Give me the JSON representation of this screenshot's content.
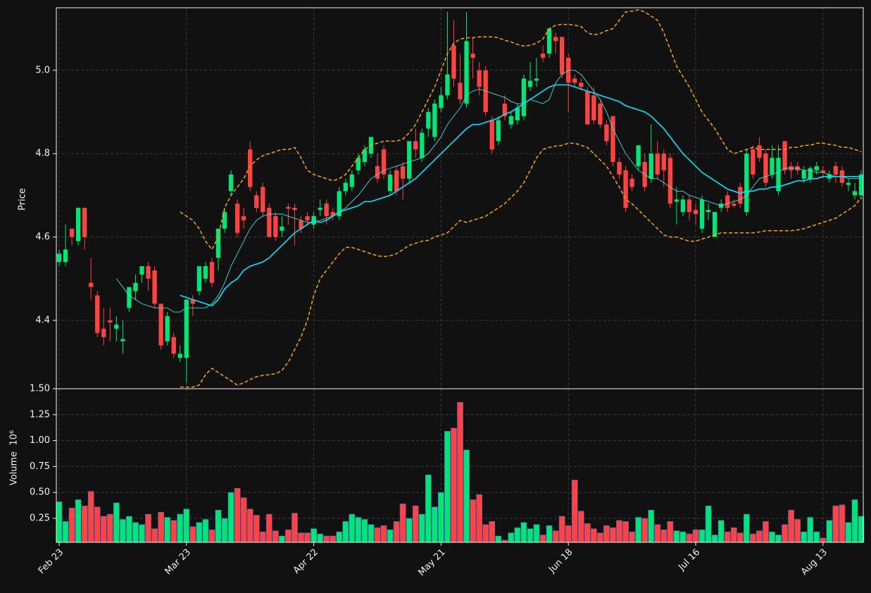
{
  "chart_data": {
    "type": "candlestick",
    "ylabel": "Price",
    "volume_ylabel": "Volume  10⁶",
    "up_color": "#00e676",
    "down_color": "#ff4242",
    "grid": true,
    "ylim": [
      4.236,
      5.15
    ],
    "yticks": [
      4.4,
      4.6,
      4.8,
      {
        "value": 5.0,
        "label": "5.0"
      }
    ],
    "volume_ylim": [
      0.019,
      1.5
    ],
    "volume_yticks": [
      0.25,
      {
        "value": 0.5,
        "label": "0.50"
      },
      0.75,
      {
        "value": 1.0,
        "label": "1.00"
      },
      1.25,
      {
        "value": 1.5,
        "label": "1.50"
      }
    ],
    "categories": [
      "Feb 23",
      null,
      null,
      null,
      null,
      null,
      null,
      null,
      null,
      null,
      null,
      null,
      null,
      null,
      null,
      null,
      null,
      null,
      null,
      null,
      "Mar 23",
      null,
      null,
      null,
      null,
      null,
      null,
      null,
      null,
      null,
      null,
      null,
      null,
      null,
      null,
      null,
      null,
      null,
      null,
      null,
      "Apr 22",
      null,
      null,
      null,
      null,
      null,
      null,
      null,
      null,
      null,
      null,
      null,
      null,
      null,
      null,
      null,
      null,
      null,
      null,
      null,
      "May 21",
      null,
      null,
      null,
      null,
      null,
      null,
      null,
      null,
      null,
      null,
      null,
      null,
      null,
      null,
      null,
      null,
      null,
      null,
      null,
      "Jun 18",
      null,
      null,
      null,
      null,
      null,
      null,
      null,
      null,
      null,
      null,
      null,
      null,
      null,
      null,
      null,
      null,
      null,
      null,
      null,
      "Jul 16",
      null,
      null,
      null,
      null,
      null,
      null,
      null,
      null,
      null,
      null,
      null,
      null,
      null,
      null,
      null,
      null,
      null,
      null,
      null,
      "Aug 13",
      null,
      null,
      null,
      null,
      null,
      null
    ],
    "open": [
      4.54,
      4.54,
      4.62,
      4.59,
      4.67,
      4.49,
      4.46,
      4.38,
      4.4,
      4.38,
      4.35,
      4.43,
      4.47,
      4.51,
      4.53,
      4.52,
      4.44,
      4.35,
      4.36,
      4.31,
      4.31,
      4.45,
      4.47,
      4.5,
      4.54,
      4.55,
      4.62,
      4.71,
      4.68,
      4.65,
      4.81,
      4.7,
      4.72,
      4.67,
      4.65,
      4.615,
      4.672,
      4.67,
      4.64,
      4.65,
      4.63,
      4.665,
      4.68,
      4.66,
      4.65,
      4.71,
      4.72,
      4.76,
      4.78,
      4.8,
      4.77,
      4.81,
      4.71,
      4.76,
      4.77,
      4.74,
      4.83,
      4.79,
      4.86,
      4.84,
      4.91,
      4.94,
      5.06,
      4.97,
      4.92,
      5.04,
      5.0,
      5.0,
      4.88,
      4.83,
      4.92,
      4.87,
      4.88,
      4.89,
      4.96,
      4.975,
      5.04,
      5.04,
      5.08,
      5.08,
      5.03,
      4.98,
      4.97,
      4.95,
      4.94,
      4.92,
      4.87,
      4.89,
      4.78,
      4.76,
      4.74,
      4.77,
      4.78,
      4.74,
      4.8,
      4.8,
      4.79,
      4.685,
      4.66,
      4.69,
      4.665,
      4.62,
      4.66,
      4.6,
      4.67,
      4.7,
      4.68,
      4.72,
      4.66,
      4.81,
      4.82,
      4.8,
      4.75,
      4.71,
      4.83,
      4.77,
      4.77,
      4.74,
      4.74,
      4.76,
      4.76,
      4.74,
      4.77,
      4.76,
      4.725,
      4.7,
      4.7
    ],
    "high": [
      4.57,
      4.63,
      4.62,
      4.67,
      4.67,
      4.55,
      4.47,
      4.43,
      4.43,
      4.41,
      4.4,
      4.48,
      4.51,
      4.53,
      4.54,
      4.53,
      4.44,
      4.42,
      4.37,
      4.34,
      4.45,
      4.46,
      4.53,
      4.54,
      4.55,
      4.62,
      4.67,
      4.76,
      4.69,
      4.67,
      4.83,
      4.71,
      4.73,
      4.68,
      4.66,
      4.65,
      4.68,
      4.68,
      4.65,
      4.66,
      4.66,
      4.69,
      4.69,
      4.67,
      4.72,
      4.74,
      4.76,
      4.8,
      4.82,
      4.84,
      4.8,
      4.82,
      4.76,
      4.77,
      4.78,
      4.83,
      4.86,
      4.86,
      4.91,
      4.93,
      4.96,
      5.14,
      5.12,
      5.04,
      5.14,
      5.08,
      5.02,
      5.01,
      4.89,
      4.89,
      4.94,
      4.9,
      4.92,
      4.99,
      5.02,
      5.03,
      5.06,
      5.1,
      5.09,
      5.08,
      5.04,
      4.99,
      4.98,
      4.96,
      4.96,
      4.93,
      4.88,
      4.89,
      4.79,
      4.77,
      4.75,
      4.82,
      4.8,
      4.87,
      4.83,
      4.81,
      4.8,
      4.72,
      4.7,
      4.7,
      4.68,
      4.7,
      4.68,
      4.66,
      4.69,
      4.71,
      4.69,
      4.73,
      4.81,
      4.82,
      4.84,
      4.81,
      4.82,
      4.82,
      4.83,
      4.78,
      4.78,
      4.77,
      4.77,
      4.78,
      4.77,
      4.76,
      4.78,
      4.77,
      4.74,
      4.73,
      4.76
    ],
    "low": [
      4.53,
      4.53,
      4.58,
      4.58,
      4.57,
      4.45,
      4.36,
      4.34,
      4.35,
      4.35,
      4.32,
      4.42,
      4.45,
      4.49,
      4.47,
      4.43,
      4.33,
      4.34,
      4.31,
      4.3,
      4.25,
      4.41,
      4.46,
      4.49,
      4.48,
      4.52,
      4.61,
      4.7,
      4.6,
      4.62,
      4.71,
      4.66,
      4.65,
      4.6,
      4.59,
      4.6,
      4.63,
      4.58,
      4.61,
      4.63,
      4.62,
      4.65,
      4.63,
      4.64,
      4.64,
      4.7,
      4.71,
      4.75,
      4.77,
      4.79,
      4.73,
      4.74,
      4.7,
      4.7,
      4.69,
      4.73,
      4.79,
      4.78,
      4.84,
      4.83,
      4.9,
      4.93,
      4.96,
      4.92,
      4.91,
      4.98,
      4.94,
      4.89,
      4.8,
      4.82,
      4.88,
      4.86,
      4.87,
      4.88,
      4.95,
      4.96,
      5.02,
      5.03,
      5.04,
      4.98,
      4.9,
      4.96,
      4.95,
      4.87,
      4.87,
      4.86,
      4.82,
      4.77,
      4.74,
      4.66,
      4.71,
      4.76,
      4.71,
      4.73,
      4.74,
      4.72,
      4.67,
      4.63,
      4.65,
      4.64,
      4.63,
      4.61,
      4.64,
      4.6,
      4.66,
      4.66,
      4.67,
      4.67,
      4.65,
      4.74,
      4.78,
      4.72,
      4.74,
      4.7,
      4.75,
      4.74,
      4.75,
      4.73,
      4.73,
      4.75,
      4.74,
      4.73,
      4.73,
      4.72,
      4.71,
      4.69,
      4.69
    ],
    "close": [
      4.56,
      4.57,
      4.6,
      4.67,
      4.6,
      4.48,
      4.37,
      4.36,
      4.395,
      4.39,
      4.355,
      4.48,
      4.49,
      4.53,
      4.5,
      4.44,
      4.34,
      4.41,
      4.32,
      4.32,
      4.45,
      4.44,
      4.53,
      4.53,
      4.49,
      4.62,
      4.66,
      4.75,
      4.61,
      4.64,
      4.72,
      4.67,
      4.66,
      4.6,
      4.6,
      4.625,
      4.668,
      4.665,
      4.62,
      4.64,
      4.65,
      4.67,
      4.65,
      4.65,
      4.71,
      4.73,
      4.75,
      4.79,
      4.81,
      4.84,
      4.74,
      4.75,
      4.75,
      4.71,
      4.74,
      4.83,
      4.81,
      4.85,
      4.9,
      4.92,
      4.94,
      4.99,
      4.98,
      4.93,
      5.07,
      5.03,
      4.96,
      4.9,
      4.81,
      4.88,
      4.89,
      4.89,
      4.91,
      4.98,
      4.975,
      4.98,
      5.03,
      5.1,
      5.07,
      4.99,
      4.97,
      4.97,
      4.96,
      4.87,
      4.88,
      4.87,
      4.83,
      4.78,
      4.75,
      4.67,
      4.72,
      4.82,
      4.72,
      4.8,
      4.75,
      4.76,
      4.68,
      4.69,
      4.69,
      4.66,
      4.655,
      4.69,
      4.665,
      4.66,
      4.68,
      4.67,
      4.675,
      4.68,
      4.8,
      4.75,
      4.79,
      4.73,
      4.79,
      4.79,
      4.76,
      4.76,
      4.76,
      4.76,
      4.765,
      4.77,
      4.755,
      4.75,
      4.75,
      4.73,
      4.73,
      4.71,
      4.75
    ],
    "volume": [
      0.41,
      0.22,
      0.35,
      0.43,
      0.37,
      0.51,
      0.36,
      0.27,
      0.29,
      0.4,
      0.24,
      0.27,
      0.21,
      0.19,
      0.29,
      0.15,
      0.31,
      0.26,
      0.23,
      0.29,
      0.34,
      0.17,
      0.21,
      0.24,
      0.14,
      0.33,
      0.25,
      0.5,
      0.54,
      0.45,
      0.34,
      0.28,
      0.12,
      0.29,
      0.13,
      0.08,
      0.14,
      0.3,
      0.11,
      0.11,
      0.15,
      0.1,
      0.08,
      0.08,
      0.12,
      0.22,
      0.29,
      0.26,
      0.24,
      0.19,
      0.16,
      0.18,
      0.14,
      0.22,
      0.39,
      0.25,
      0.37,
      0.29,
      0.67,
      0.36,
      0.5,
      1.09,
      1.12,
      1.37,
      0.91,
      0.43,
      0.48,
      0.19,
      0.22,
      0.08,
      0.04,
      0.11,
      0.16,
      0.21,
      0.15,
      0.19,
      0.09,
      0.18,
      0.13,
      0.27,
      0.18,
      0.62,
      0.32,
      0.2,
      0.15,
      0.11,
      0.18,
      0.16,
      0.23,
      0.22,
      0.12,
      0.26,
      0.25,
      0.33,
      0.19,
      0.14,
      0.22,
      0.13,
      0.12,
      0.1,
      0.14,
      0.14,
      0.37,
      0.09,
      0.23,
      0.12,
      0.16,
      0.11,
      0.29,
      0.1,
      0.13,
      0.22,
      0.12,
      0.09,
      0.19,
      0.33,
      0.24,
      0.12,
      0.26,
      0.12,
      0.06,
      0.23,
      0.37,
      0.38,
      0.21,
      0.43,
      0.27
    ],
    "series": [
      {
        "color": "#3fe0d8",
        "style": "thin",
        "values": [
          null,
          null,
          null,
          null,
          null,
          null,
          null,
          null,
          null,
          4.5,
          4.48,
          4.46,
          4.45,
          4.44,
          4.435,
          4.43,
          4.43,
          4.43,
          4.42,
          4.42,
          4.43,
          4.43,
          4.43,
          4.43,
          4.44,
          4.46,
          4.49,
          4.53,
          4.56,
          4.59,
          4.62,
          4.64,
          4.65,
          4.655,
          4.655,
          4.655,
          4.65,
          4.645,
          4.64,
          4.635,
          4.635,
          4.64,
          4.645,
          4.65,
          4.66,
          4.67,
          4.685,
          4.7,
          4.72,
          4.74,
          4.75,
          4.76,
          4.765,
          4.77,
          4.775,
          4.78,
          4.785,
          4.79,
          4.8,
          4.82,
          4.84,
          4.87,
          4.89,
          4.91,
          4.94,
          4.95,
          4.955,
          4.95,
          4.945,
          4.94,
          4.935,
          4.925,
          4.92,
          4.92,
          4.93,
          4.925,
          4.92,
          4.93,
          4.97,
          4.99,
          5.0,
          5.0,
          4.99,
          4.97,
          4.95,
          4.93,
          4.9,
          4.86,
          4.83,
          4.8,
          4.78,
          4.76,
          4.75,
          4.74,
          4.74,
          4.73,
          4.72,
          4.71,
          4.71,
          4.7,
          4.695,
          4.69,
          4.685,
          4.68,
          4.675,
          4.68,
          4.685,
          4.69,
          4.7,
          4.72,
          4.74,
          4.745,
          4.75,
          4.755,
          4.765,
          4.765,
          4.765,
          4.76,
          4.76,
          4.755,
          4.755,
          4.75,
          4.745,
          4.745,
          4.74,
          4.74,
          4.74
        ]
      },
      {
        "color": "#00e5ff",
        "style": "thick",
        "values": [
          null,
          null,
          null,
          null,
          null,
          null,
          null,
          null,
          null,
          null,
          null,
          null,
          null,
          null,
          null,
          null,
          null,
          null,
          null,
          4.46,
          4.455,
          4.45,
          4.445,
          4.44,
          4.435,
          4.45,
          4.475,
          4.49,
          4.5,
          4.52,
          4.53,
          4.535,
          4.54,
          4.55,
          4.565,
          4.58,
          4.595,
          4.61,
          4.62,
          4.63,
          4.64,
          4.635,
          4.64,
          4.65,
          4.66,
          4.665,
          4.67,
          4.675,
          4.685,
          4.685,
          4.69,
          4.695,
          4.7,
          4.71,
          4.72,
          4.73,
          4.74,
          4.755,
          4.77,
          4.785,
          4.8,
          4.815,
          4.83,
          4.845,
          4.86,
          4.87,
          4.87,
          4.875,
          4.88,
          4.885,
          4.895,
          4.9,
          4.91,
          4.92,
          4.93,
          4.94,
          4.95,
          4.96,
          4.965,
          4.965,
          4.965,
          4.96,
          4.955,
          4.95,
          4.945,
          4.94,
          4.935,
          4.93,
          4.925,
          4.915,
          4.91,
          4.905,
          4.9,
          4.89,
          4.875,
          4.86,
          4.84,
          4.82,
          4.8,
          4.785,
          4.77,
          4.755,
          4.745,
          4.735,
          4.725,
          4.715,
          4.71,
          4.705,
          4.71,
          4.71,
          4.715,
          4.715,
          4.72,
          4.72,
          4.725,
          4.73,
          4.735,
          4.735,
          4.74,
          4.74,
          4.745,
          4.745,
          4.745,
          4.745,
          4.745,
          4.745,
          4.745
        ]
      },
      {
        "color": "#ffa500",
        "style": "dashed",
        "values": [
          null,
          null,
          null,
          null,
          null,
          null,
          null,
          null,
          null,
          null,
          null,
          null,
          null,
          null,
          null,
          null,
          null,
          null,
          null,
          4.66,
          4.65,
          4.64,
          4.62,
          4.59,
          4.57,
          4.6,
          4.67,
          4.7,
          4.72,
          4.74,
          4.77,
          4.785,
          4.795,
          4.8,
          4.805,
          4.81,
          4.81,
          4.815,
          4.79,
          4.76,
          4.75,
          4.745,
          4.74,
          4.735,
          4.74,
          4.75,
          4.77,
          4.79,
          4.81,
          4.82,
          4.825,
          4.83,
          4.83,
          4.83,
          4.835,
          4.85,
          4.87,
          4.9,
          4.93,
          4.96,
          5.0,
          5.04,
          5.065,
          5.075,
          5.078,
          5.078,
          5.08,
          5.08,
          5.08,
          5.078,
          5.072,
          5.068,
          5.062,
          5.058,
          5.06,
          5.065,
          5.075,
          5.1,
          5.108,
          5.11,
          5.11,
          5.108,
          5.105,
          5.09,
          5.085,
          5.088,
          5.095,
          5.1,
          5.12,
          5.14,
          5.142,
          5.145,
          5.14,
          5.13,
          5.12,
          5.09,
          5.05,
          5.01,
          4.985,
          4.96,
          4.93,
          4.9,
          4.88,
          4.86,
          4.835,
          4.81,
          4.8,
          4.805,
          4.81,
          4.815,
          4.81,
          4.81,
          4.81,
          4.81,
          4.81,
          4.815,
          4.815,
          4.82,
          4.82,
          4.825,
          4.825,
          4.822,
          4.82,
          4.815,
          4.815,
          4.81,
          4.805
        ]
      },
      {
        "color": "#ffa500",
        "style": "dashed",
        "values": [
          null,
          null,
          null,
          null,
          null,
          null,
          null,
          null,
          null,
          null,
          null,
          null,
          null,
          null,
          null,
          null,
          null,
          null,
          null,
          4.24,
          4.24,
          4.24,
          4.245,
          4.27,
          4.285,
          4.275,
          4.265,
          4.255,
          4.245,
          4.25,
          4.258,
          4.265,
          4.268,
          4.27,
          4.272,
          4.28,
          4.3,
          4.33,
          4.36,
          4.4,
          4.46,
          4.5,
          4.52,
          4.54,
          4.56,
          4.575,
          4.575,
          4.57,
          4.565,
          4.56,
          4.555,
          4.553,
          4.555,
          4.56,
          4.57,
          4.58,
          4.585,
          4.59,
          4.592,
          4.6,
          4.605,
          4.61,
          4.625,
          4.64,
          4.635,
          4.64,
          4.645,
          4.65,
          4.66,
          4.67,
          4.68,
          4.695,
          4.71,
          4.73,
          4.76,
          4.79,
          4.81,
          4.815,
          4.818,
          4.82,
          4.825,
          4.825,
          4.82,
          4.815,
          4.8,
          4.785,
          4.77,
          4.745,
          4.72,
          4.69,
          4.68,
          4.665,
          4.65,
          4.635,
          4.62,
          4.605,
          4.6,
          4.6,
          4.595,
          4.59,
          4.59,
          4.595,
          4.6,
          4.605,
          4.61,
          4.61,
          4.61,
          4.61,
          4.61,
          4.61,
          4.612,
          4.615,
          4.615,
          4.615,
          4.615,
          4.615,
          4.617,
          4.62,
          4.625,
          4.63,
          4.635,
          4.64,
          4.645,
          4.655,
          4.665,
          4.675,
          4.695
        ]
      }
    ]
  }
}
